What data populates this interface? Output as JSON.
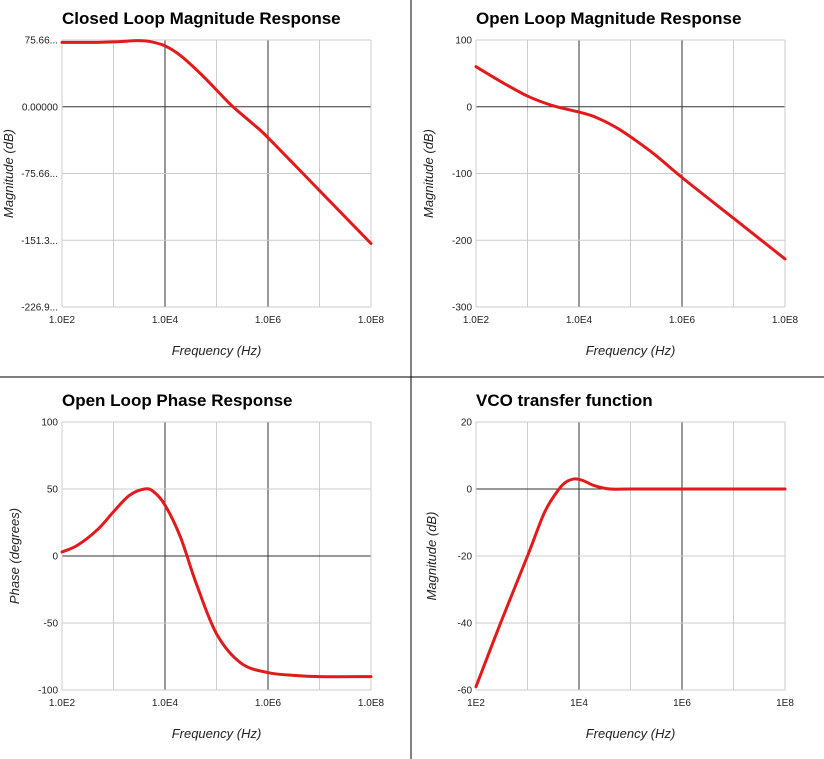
{
  "colors": {
    "series": "#e31a1c",
    "grid": "#cccccc",
    "major_grid": "#333333",
    "zero_line": "#333333",
    "divider": "#000000"
  },
  "chart_data": [
    {
      "type": "line",
      "title": "Closed Loop Magnitude Response",
      "xlabel": "Frequency (Hz)",
      "ylabel": "Magnitude (dB)",
      "xscale": "log",
      "xlim": [
        100,
        100000000
      ],
      "ylim": [
        -226.98,
        75.66
      ],
      "x_ticks": [
        {
          "value": 100,
          "label": "1.0E2"
        },
        {
          "value": 10000,
          "label": "1.0E4"
        },
        {
          "value": 1000000,
          "label": "1.0E6"
        },
        {
          "value": 100000000,
          "label": "1.0E8"
        }
      ],
      "y_ticks": [
        {
          "value": 75.66,
          "label": "75.66..."
        },
        {
          "value": 0,
          "label": "0.00000"
        },
        {
          "value": -75.66,
          "label": "-75.66..."
        },
        {
          "value": -151.32,
          "label": "-151.3..."
        },
        {
          "value": -226.98,
          "label": "-226.9..."
        }
      ],
      "series": [
        {
          "x": [
            100,
            200,
            500,
            1000,
            2000,
            3000,
            5000,
            10000,
            20000,
            50000,
            100000,
            200000,
            500000,
            1000000,
            10000000,
            100000000
          ],
          "y": [
            73,
            73,
            73,
            73.5,
            74.5,
            75,
            74,
            69,
            58,
            37,
            19,
            1,
            -19,
            -35,
            -95,
            -155
          ]
        }
      ]
    },
    {
      "type": "line",
      "title": "Open Loop Magnitude Response",
      "xlabel": "Frequency (Hz)",
      "ylabel": "Magnitude (dB)",
      "xscale": "log",
      "xlim": [
        100,
        100000000
      ],
      "ylim": [
        -300,
        100
      ],
      "x_ticks": [
        {
          "value": 100,
          "label": "1.0E2"
        },
        {
          "value": 10000,
          "label": "1.0E4"
        },
        {
          "value": 1000000,
          "label": "1.0E6"
        },
        {
          "value": 100000000,
          "label": "1.0E8"
        }
      ],
      "y_ticks": [
        {
          "value": 100,
          "label": "100"
        },
        {
          "value": 0,
          "label": "0"
        },
        {
          "value": -100,
          "label": "-100"
        },
        {
          "value": -200,
          "label": "-200"
        },
        {
          "value": -300,
          "label": "-300"
        }
      ],
      "series": [
        {
          "x": [
            100,
            300,
            1000,
            3000,
            10000,
            20000,
            50000,
            100000,
            300000,
            1000000,
            10000000,
            100000000
          ],
          "y": [
            60,
            38,
            16,
            2,
            -8,
            -15,
            -30,
            -45,
            -72,
            -106,
            -167,
            -228
          ]
        }
      ]
    },
    {
      "type": "line",
      "title": "Open Loop Phase Response",
      "xlabel": "Frequency (Hz)",
      "ylabel": "Phase (degrees)",
      "xscale": "log",
      "xlim": [
        100,
        100000000
      ],
      "ylim": [
        -100,
        100
      ],
      "x_ticks": [
        {
          "value": 100,
          "label": "1.0E2"
        },
        {
          "value": 10000,
          "label": "1.0E4"
        },
        {
          "value": 1000000,
          "label": "1.0E6"
        },
        {
          "value": 100000000,
          "label": "1.0E8"
        }
      ],
      "y_ticks": [
        {
          "value": 100,
          "label": "100"
        },
        {
          "value": 50,
          "label": "50"
        },
        {
          "value": 0,
          "label": "0"
        },
        {
          "value": -50,
          "label": "-50"
        },
        {
          "value": -100,
          "label": "-100"
        }
      ],
      "series": [
        {
          "x": [
            100,
            200,
            500,
            1000,
            2000,
            4000,
            6000,
            10000,
            20000,
            40000,
            100000,
            300000,
            1000000,
            3000000,
            10000000,
            100000000
          ],
          "y": [
            3,
            8,
            20,
            33,
            45,
            50,
            48,
            38,
            14,
            -20,
            -58,
            -80,
            -87,
            -89,
            -90,
            -90
          ]
        }
      ]
    },
    {
      "type": "line",
      "title": "VCO transfer function",
      "xlabel": "Frequency (Hz)",
      "ylabel": "Magnitude (dB)",
      "xscale": "log",
      "xlim": [
        100,
        100000000
      ],
      "ylim": [
        -60,
        20
      ],
      "x_ticks": [
        {
          "value": 100,
          "label": "1E2"
        },
        {
          "value": 10000,
          "label": "1E4"
        },
        {
          "value": 1000000,
          "label": "1E6"
        },
        {
          "value": 100000000,
          "label": "1E8"
        }
      ],
      "y_ticks": [
        {
          "value": 20,
          "label": "20"
        },
        {
          "value": 0,
          "label": "0"
        },
        {
          "value": -20,
          "label": "-20"
        },
        {
          "value": -40,
          "label": "-40"
        },
        {
          "value": -60,
          "label": "-60"
        }
      ],
      "series": [
        {
          "x": [
            100,
            300,
            1000,
            2000,
            3000,
            5000,
            8000,
            12000,
            20000,
            40000,
            100000,
            1000000,
            100000000
          ],
          "y": [
            -59,
            -40,
            -20,
            -8,
            -3,
            1.5,
            3,
            2.5,
            1,
            0,
            0,
            0,
            0
          ]
        }
      ]
    }
  ]
}
